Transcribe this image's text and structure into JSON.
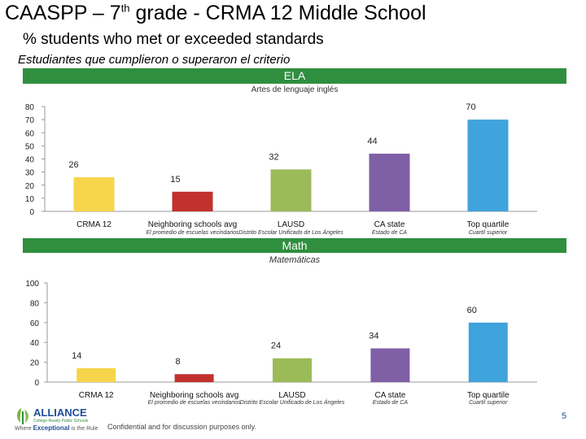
{
  "title": {
    "main": "CAASPP – 7",
    "sup": "th",
    "rest": " grade - CRMA 12 Middle School"
  },
  "subtitle": "% students who met or exceeded standards",
  "subtitle_es": "Estudiantes que cumplieron o superaron el criterio",
  "colors": {
    "band": "#2f8f3f",
    "bars": [
      "#f6d54a",
      "#c2312d",
      "#9bbb59",
      "#7f5fa6",
      "#3fa3dc"
    ]
  },
  "chart_data": [
    {
      "type": "bar",
      "title": "ELA",
      "subtitle": "Artes de lenguaje inglés",
      "categories": [
        "CRMA 12",
        "Neighboring schools avg",
        "LAUSD",
        "CA state",
        "Top quartile"
      ],
      "categories_es": [
        "",
        "El promedio de escuelas vecindarios",
        "Distrito Escolar Unificado de Los Ángeles",
        "Estado de CA",
        "Cuartil superior"
      ],
      "values": [
        26,
        15,
        32,
        44,
        70
      ],
      "value_labels": [
        "26",
        "15",
        "32",
        "44",
        "70"
      ],
      "ylim": [
        0,
        80
      ],
      "yticks": [
        0,
        10,
        20,
        30,
        40,
        50,
        60,
        70,
        80
      ],
      "ytick_labels": [
        "0",
        "10",
        "20",
        "30",
        "40",
        "50",
        "60",
        "70",
        "80"
      ]
    },
    {
      "type": "bar",
      "title": "Math",
      "subtitle": "Matemáticas",
      "categories": [
        "CRMA 12",
        "Neighboring schools avg",
        "LAUSD",
        "CA state",
        "Top quartile"
      ],
      "categories_es": [
        "",
        "El promedio de escuelas vecindarios",
        "Distrito Escolar Unificado de Los Ángeles",
        "Estado de CA",
        "Cuartil superior"
      ],
      "values": [
        14,
        8,
        24,
        34,
        60
      ],
      "value_labels": [
        "14",
        "8",
        "24",
        "34",
        "60"
      ],
      "ylim": [
        0,
        100
      ],
      "yticks": [
        0,
        20,
        40,
        60,
        80,
        100
      ],
      "ytick_labels": [
        "0",
        "20",
        "40",
        "60",
        "80",
        "100"
      ]
    }
  ],
  "footer": {
    "logo_name": "ALLIANCE",
    "logo_tagline": "College-Ready Public Schools",
    "logo_motto_pre": "Where ",
    "logo_motto_bold": "Exceptional",
    "logo_motto_post": " is the Rule",
    "confidential": "Confidential and for discussion purposes only.",
    "page_number": "5"
  }
}
